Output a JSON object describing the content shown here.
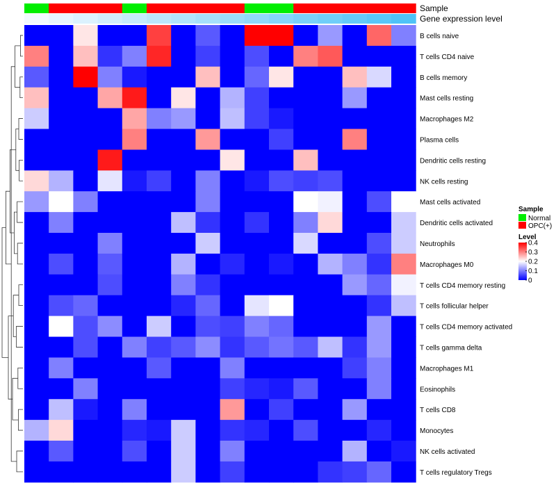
{
  "chart_data": {
    "type": "heatmap",
    "annotation_labels": {
      "sample": "Sample",
      "expression": "Gene expression level"
    },
    "samples": [
      "Normal",
      "OPC(+)",
      "OPC(+)",
      "OPC(+)",
      "Normal",
      "OPC(+)",
      "OPC(+)",
      "OPC(+)",
      "OPC(+)",
      "Normal",
      "Normal",
      "OPC(+)",
      "OPC(+)",
      "OPC(+)",
      "OPC(+)",
      "OPC(+)"
    ],
    "expression_track": [
      0.02,
      0.06,
      0.1,
      0.14,
      0.18,
      0.22,
      0.26,
      0.3,
      0.34,
      0.38,
      0.42,
      0.46,
      0.5,
      0.54,
      0.58,
      0.62
    ],
    "rows": [
      "B cells naive",
      "T cells CD4 naive",
      "B cells memory",
      "Mast cells resting",
      "Macrophages M2",
      "Plasma cells",
      "Dendritic cells resting",
      "NK cells resting",
      "Mast cells activated",
      "Dendritic cells activated",
      "Neutrophils",
      "Macrophages M0",
      "T cells CD4 memory resting",
      "T cells follicular helper",
      "T cells CD4 memory activated",
      "T cells gamma delta",
      "Macrophages M1",
      "Eosinophils",
      "T cells CD8",
      "Monocytes",
      "NK cells activated",
      "T cells regulatory  Tregs"
    ],
    "values": [
      [
        0,
        0,
        0.22,
        0,
        0,
        0.35,
        0,
        0.07,
        0,
        0.4,
        0.4,
        0,
        0.12,
        0,
        0.32,
        0.1
      ],
      [
        0.3,
        0,
        0.25,
        0.04,
        0.1,
        0.37,
        0,
        0.05,
        0,
        0.06,
        0,
        0.3,
        0.33,
        0,
        0,
        0
      ],
      [
        0.07,
        0,
        0.4,
        0.1,
        0.02,
        0,
        0,
        0.25,
        0,
        0.08,
        0.22,
        0,
        0,
        0.25,
        0.17,
        0
      ],
      [
        0.25,
        0,
        0,
        0.27,
        0.38,
        0,
        0.22,
        0,
        0.14,
        0.05,
        0,
        0,
        0,
        0.12,
        0,
        0
      ],
      [
        0.16,
        0,
        0,
        0,
        0.27,
        0.1,
        0.12,
        0,
        0.15,
        0.05,
        0.02,
        0,
        0,
        0,
        0,
        0
      ],
      [
        0,
        0,
        0,
        0,
        0.3,
        0,
        0,
        0.28,
        0,
        0,
        0.05,
        0,
        0,
        0.3,
        0,
        0
      ],
      [
        0,
        0,
        0,
        0.38,
        0,
        0,
        0,
        0,
        0.22,
        0,
        0,
        0.25,
        0,
        0,
        0,
        0
      ],
      [
        0.23,
        0.14,
        0,
        0.18,
        0.02,
        0.05,
        0,
        0.1,
        0,
        0.02,
        0.06,
        0.05,
        0.06,
        0,
        0,
        0
      ],
      [
        0.12,
        0.2,
        0.1,
        0,
        0,
        0,
        0,
        0.1,
        0,
        0,
        0,
        0.2,
        0.19,
        0,
        0.06,
        0.2
      ],
      [
        0,
        0.1,
        0,
        0,
        0,
        0,
        0.15,
        0.04,
        0,
        0.04,
        0,
        0.1,
        0.23,
        0,
        0,
        0.16
      ],
      [
        0,
        0,
        0,
        0.1,
        0,
        0,
        0,
        0.16,
        0,
        0,
        0,
        0.17,
        0,
        0,
        0.06,
        0.16
      ],
      [
        0,
        0.06,
        0,
        0.07,
        0,
        0,
        0.14,
        0,
        0.03,
        0,
        0.02,
        0,
        0.14,
        0.1,
        0.04,
        0.3
      ],
      [
        0,
        0,
        0,
        0.06,
        0,
        0,
        0.1,
        0.04,
        0,
        0,
        0,
        0,
        0,
        0.12,
        0.08,
        0.19
      ],
      [
        0,
        0.06,
        0.08,
        0,
        0,
        0,
        0.03,
        0.08,
        0,
        0.18,
        0.2,
        0,
        0,
        0,
        0.04,
        0.15
      ],
      [
        0,
        0.2,
        0.06,
        0.11,
        0,
        0.16,
        0,
        0.06,
        0.05,
        0.1,
        0.08,
        0,
        0,
        0,
        0.12,
        0
      ],
      [
        0,
        0,
        0.06,
        0,
        0.1,
        0.05,
        0.07,
        0.11,
        0.04,
        0.07,
        0.09,
        0.07,
        0.15,
        0.04,
        0.12,
        0
      ],
      [
        0,
        0.1,
        0,
        0,
        0,
        0.07,
        0,
        0,
        0.1,
        0,
        0,
        0,
        0,
        0.05,
        0.1,
        0
      ],
      [
        0,
        0,
        0.1,
        0,
        0,
        0,
        0,
        0,
        0.05,
        0.03,
        0.02,
        0.07,
        0,
        0,
        0.1,
        0
      ],
      [
        0,
        0.15,
        0.02,
        0,
        0.1,
        0,
        0,
        0,
        0.28,
        0,
        0.05,
        0,
        0,
        0.12,
        0,
        0
      ],
      [
        0.14,
        0.23,
        0,
        0,
        0.03,
        0.02,
        0.16,
        0,
        0.04,
        0.03,
        0,
        0.06,
        0,
        0,
        0.03,
        0
      ],
      [
        0,
        0.07,
        0,
        0,
        0.06,
        0,
        0.16,
        0,
        0.1,
        0,
        0,
        0,
        0,
        0.14,
        0,
        0.02
      ],
      [
        0,
        0,
        0,
        0,
        0,
        0,
        0.16,
        0,
        0.05,
        0,
        0,
        0,
        0.04,
        0.05,
        0.08,
        0
      ]
    ],
    "row_dendrogram": [
      [
        0,
        1
      ],
      [
        2,
        3
      ],
      [
        4,
        5
      ],
      [
        6,
        7
      ],
      [
        8,
        9
      ],
      [
        10,
        11
      ],
      [
        12,
        13
      ],
      [
        14,
        15
      ],
      [
        16,
        17
      ],
      [
        18,
        19
      ],
      [
        20,
        21
      ],
      [
        22,
        23
      ],
      [
        24,
        25
      ],
      [
        26,
        27
      ],
      [
        28,
        29
      ],
      [
        30,
        31
      ],
      [
        32,
        33
      ],
      [
        34,
        35
      ],
      [
        36,
        37
      ],
      [
        38,
        39
      ],
      [
        40,
        41
      ]
    ],
    "legend": {
      "sample": {
        "title": "Sample",
        "entries": [
          {
            "label": "Normal",
            "color": "#00ee00"
          },
          {
            "label": "OPC(+)",
            "color": "#ff0000"
          }
        ]
      },
      "level": {
        "title": "Level",
        "ticks": [
          "0",
          "0.1",
          "0.2",
          "0.3",
          "0.4"
        ],
        "range": [
          0,
          0.4
        ]
      }
    },
    "color_scale": {
      "low": "#0000ff",
      "mid": "#ffffff",
      "high": "#ff0000",
      "midpoint": 0.2
    }
  }
}
